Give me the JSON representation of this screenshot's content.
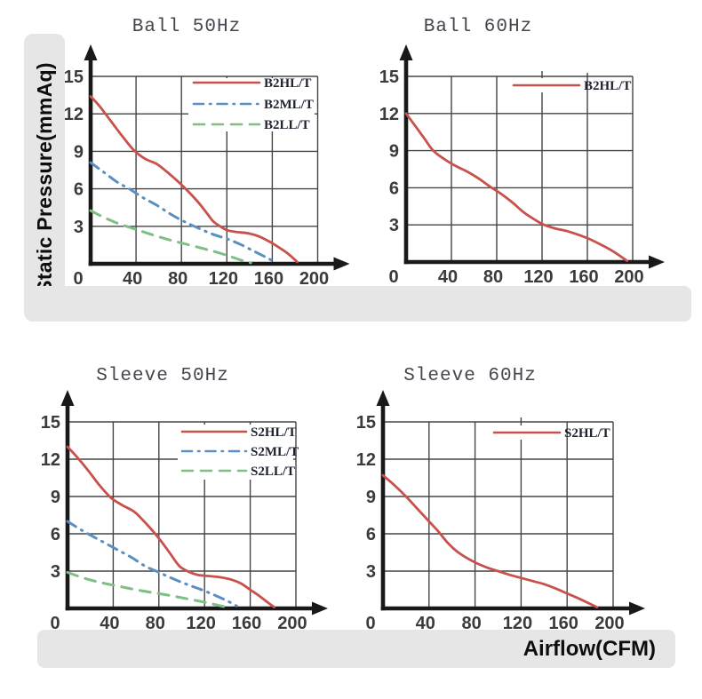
{
  "labels": {
    "y_axis": "Static Pressure(mmAq)",
    "x_axis": "Airflow(CFM)"
  },
  "palette": {
    "red": "#c8514b",
    "blue": "#5a8fc2",
    "green": "#7dbf85",
    "grid": "#454545",
    "axis": "#191919",
    "band_bg": "#e6e6e6",
    "title_text": "#45454e",
    "tick_text": "#3b3b3b",
    "legend_text": "#1e2330",
    "band_label_text": "#0e0e0e",
    "legend_bg": "#ffffff"
  },
  "chart_data": [
    {
      "type": "line",
      "title": "Ball 50Hz",
      "xlabel": "Airflow(CFM)",
      "ylabel": "Static Pressure(mmAq)",
      "xlim": [
        0,
        200
      ],
      "ylim": [
        0,
        15
      ],
      "x_ticks": [
        0,
        40,
        80,
        120,
        160,
        200
      ],
      "y_ticks": [
        3,
        6,
        9,
        12,
        15
      ],
      "origin_label": "0",
      "grid": true,
      "legend_position": "top-right",
      "series": [
        {
          "name": "B2HL/T",
          "color_key": "red",
          "dash": "solid",
          "points": [
            [
              0,
              13.4
            ],
            [
              8,
              12.6
            ],
            [
              18,
              11.4
            ],
            [
              28,
              10.2
            ],
            [
              38,
              9.1
            ],
            [
              48,
              8.4
            ],
            [
              58,
              8.0
            ],
            [
              68,
              7.3
            ],
            [
              78,
              6.5
            ],
            [
              88,
              5.6
            ],
            [
              95,
              4.9
            ],
            [
              102,
              4.1
            ],
            [
              108,
              3.4
            ],
            [
              114,
              3.0
            ],
            [
              120,
              2.7
            ],
            [
              128,
              2.55
            ],
            [
              138,
              2.45
            ],
            [
              148,
              2.2
            ],
            [
              158,
              1.75
            ],
            [
              166,
              1.3
            ],
            [
              174,
              0.8
            ],
            [
              182,
              0.15
            ]
          ]
        },
        {
          "name": "B2ML/T",
          "color_key": "blue",
          "dash": "dash-dot",
          "points": [
            [
              0,
              8.1
            ],
            [
              12,
              7.3
            ],
            [
              24,
              6.5
            ],
            [
              34,
              6.0
            ],
            [
              46,
              5.3
            ],
            [
              58,
              4.7
            ],
            [
              70,
              4.0
            ],
            [
              82,
              3.4
            ],
            [
              95,
              2.85
            ],
            [
              108,
              2.35
            ],
            [
              120,
              2.0
            ],
            [
              132,
              1.55
            ],
            [
              144,
              1.0
            ],
            [
              155,
              0.5
            ],
            [
              163,
              0.1
            ]
          ]
        },
        {
          "name": "B2LL/T",
          "color_key": "green",
          "dash": "dashed",
          "points": [
            [
              0,
              4.25
            ],
            [
              12,
              3.7
            ],
            [
              25,
              3.2
            ],
            [
              40,
              2.75
            ],
            [
              55,
              2.3
            ],
            [
              70,
              1.9
            ],
            [
              85,
              1.55
            ],
            [
              100,
              1.2
            ],
            [
              112,
              0.9
            ],
            [
              124,
              0.55
            ],
            [
              134,
              0.25
            ],
            [
              141,
              0.08
            ]
          ]
        }
      ]
    },
    {
      "type": "line",
      "title": "Ball 60Hz",
      "xlabel": "Airflow(CFM)",
      "ylabel": "Static Pressure(mmAq)",
      "xlim": [
        0,
        200
      ],
      "ylim": [
        0,
        15
      ],
      "x_ticks": [
        0,
        40,
        80,
        120,
        160,
        200
      ],
      "y_ticks": [
        3,
        6,
        9,
        12,
        15
      ],
      "origin_label": "0",
      "grid": true,
      "legend_position": "top-right",
      "series": [
        {
          "name": "B2HL/T",
          "color_key": "red",
          "dash": "solid",
          "points": [
            [
              0,
              12.0
            ],
            [
              8,
              11.0
            ],
            [
              16,
              10.0
            ],
            [
              24,
              9.0
            ],
            [
              34,
              8.3
            ],
            [
              44,
              7.75
            ],
            [
              54,
              7.3
            ],
            [
              64,
              6.75
            ],
            [
              74,
              6.1
            ],
            [
              84,
              5.5
            ],
            [
              94,
              4.8
            ],
            [
              104,
              4.0
            ],
            [
              114,
              3.4
            ],
            [
              122,
              3.0
            ],
            [
              132,
              2.7
            ],
            [
              142,
              2.5
            ],
            [
              152,
              2.2
            ],
            [
              162,
              1.85
            ],
            [
              172,
              1.4
            ],
            [
              182,
              0.9
            ],
            [
              195,
              0.1
            ]
          ]
        }
      ]
    },
    {
      "type": "line",
      "title": "Sleeve 50Hz",
      "xlabel": "Airflow(CFM)",
      "ylabel": "Static Pressure(mmAq)",
      "xlim": [
        0,
        200
      ],
      "ylim": [
        0,
        15
      ],
      "x_ticks": [
        0,
        40,
        80,
        120,
        160,
        200
      ],
      "y_ticks": [
        3,
        6,
        9,
        12,
        15
      ],
      "origin_label": "0",
      "grid": true,
      "legend_position": "top-right",
      "series": [
        {
          "name": "S2HL/T",
          "color_key": "red",
          "dash": "solid",
          "points": [
            [
              0,
              13.0
            ],
            [
              8,
              12.2
            ],
            [
              18,
              11.1
            ],
            [
              28,
              9.9
            ],
            [
              38,
              8.9
            ],
            [
              48,
              8.3
            ],
            [
              58,
              7.8
            ],
            [
              66,
              7.1
            ],
            [
              74,
              6.3
            ],
            [
              82,
              5.4
            ],
            [
              90,
              4.4
            ],
            [
              98,
              3.4
            ],
            [
              106,
              2.95
            ],
            [
              114,
              2.7
            ],
            [
              124,
              2.6
            ],
            [
              134,
              2.5
            ],
            [
              144,
              2.3
            ],
            [
              152,
              2.0
            ],
            [
              160,
              1.5
            ],
            [
              168,
              1.0
            ],
            [
              175,
              0.5
            ],
            [
              181,
              0.1
            ]
          ]
        },
        {
          "name": "S2ML/T",
          "color_key": "blue",
          "dash": "dash-dot",
          "points": [
            [
              0,
              7.0
            ],
            [
              14,
              6.2
            ],
            [
              28,
              5.5
            ],
            [
              42,
              4.8
            ],
            [
              56,
              4.1
            ],
            [
              68,
              3.4
            ],
            [
              80,
              2.9
            ],
            [
              92,
              2.4
            ],
            [
              104,
              1.95
            ],
            [
              116,
              1.55
            ],
            [
              128,
              1.1
            ],
            [
              140,
              0.6
            ],
            [
              148,
              0.2
            ]
          ]
        },
        {
          "name": "S2LL/T",
          "color_key": "green",
          "dash": "dashed",
          "points": [
            [
              0,
              2.9
            ],
            [
              14,
              2.45
            ],
            [
              28,
              2.1
            ],
            [
              44,
              1.8
            ],
            [
              60,
              1.5
            ],
            [
              76,
              1.25
            ],
            [
              92,
              1.0
            ],
            [
              106,
              0.75
            ],
            [
              120,
              0.5
            ],
            [
              132,
              0.25
            ],
            [
              140,
              0.08
            ]
          ]
        }
      ]
    },
    {
      "type": "line",
      "title": "Sleeve 60Hz",
      "xlabel": "Airflow(CFM)",
      "ylabel": "Static Pressure(mmAq)",
      "xlim": [
        0,
        200
      ],
      "ylim": [
        0,
        15
      ],
      "x_ticks": [
        0,
        40,
        80,
        120,
        160,
        200
      ],
      "y_ticks": [
        3,
        6,
        9,
        12,
        15
      ],
      "origin_label": "0",
      "grid": true,
      "legend_position": "top-right",
      "series": [
        {
          "name": "S2HL/T",
          "color_key": "red",
          "dash": "solid",
          "points": [
            [
              0,
              10.7
            ],
            [
              10,
              9.9
            ],
            [
              20,
              9.0
            ],
            [
              30,
              8.0
            ],
            [
              40,
              7.0
            ],
            [
              48,
              6.2
            ],
            [
              56,
              5.3
            ],
            [
              64,
              4.6
            ],
            [
              72,
              4.1
            ],
            [
              80,
              3.7
            ],
            [
              90,
              3.3
            ],
            [
              100,
              3.0
            ],
            [
              110,
              2.7
            ],
            [
              120,
              2.45
            ],
            [
              130,
              2.2
            ],
            [
              140,
              1.95
            ],
            [
              150,
              1.6
            ],
            [
              160,
              1.2
            ],
            [
              170,
              0.8
            ],
            [
              178,
              0.45
            ],
            [
              186,
              0.1
            ]
          ]
        }
      ]
    }
  ]
}
